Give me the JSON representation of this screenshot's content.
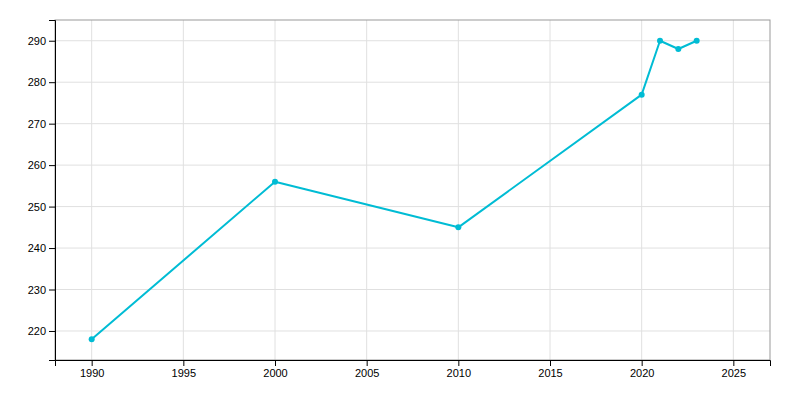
{
  "chart_data": {
    "type": "line",
    "x": [
      1990,
      2000,
      2010,
      2020,
      2021,
      2022,
      2023
    ],
    "values": [
      218,
      256,
      245,
      277,
      290,
      288,
      290
    ],
    "color": "#00bcd4",
    "marker": "circle",
    "xlim": [
      1988,
      2027
    ],
    "ylim": [
      213,
      295
    ],
    "xticks": [
      1990,
      1995,
      2000,
      2005,
      2010,
      2015,
      2020,
      2025
    ],
    "yticks": [
      220,
      230,
      240,
      250,
      260,
      270,
      280,
      290
    ],
    "grid": true
  }
}
